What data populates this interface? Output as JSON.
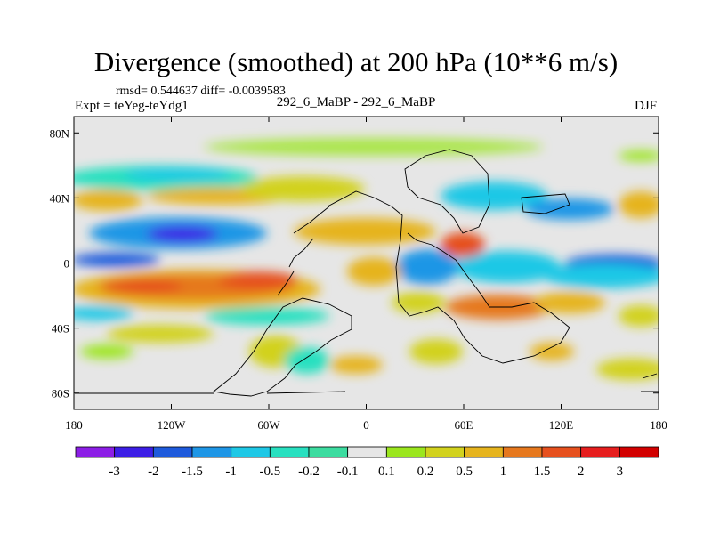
{
  "chart_data": {
    "type": "heatmap",
    "title": "Divergence (smoothed) at 200 hPa (10**6 m/s)",
    "stats_text": "rmsd= 0.544637  diff= -0.0039583",
    "experiment_text": "Expt = teYeg-teYdg1",
    "case_text": "292_6_MaBP - 292_6_MaBP",
    "season": "DJF",
    "x_ticks": [
      {
        "value": -180,
        "label": "180"
      },
      {
        "value": -120,
        "label": "120W"
      },
      {
        "value": -60,
        "label": "60W"
      },
      {
        "value": 0,
        "label": "0"
      },
      {
        "value": 60,
        "label": "60E"
      },
      {
        "value": 120,
        "label": "120E"
      },
      {
        "value": 180,
        "label": "180"
      }
    ],
    "y_ticks": [
      {
        "value": 80,
        "label": "80N"
      },
      {
        "value": 40,
        "label": "40N"
      },
      {
        "value": 0,
        "label": "0"
      },
      {
        "value": -40,
        "label": "40S"
      },
      {
        "value": -80,
        "label": "80S"
      }
    ],
    "xlim": [
      -180,
      180
    ],
    "ylim": [
      -90,
      90
    ],
    "colorbar": {
      "levels": [
        "-3",
        "-2",
        "-1.5",
        "-1",
        "-0.5",
        "-0.2",
        "-0.1",
        "0.1",
        "0.2",
        "0.5",
        "1",
        "1.5",
        "2",
        "3"
      ],
      "colors": [
        "#8c1ee6",
        "#3c1ee6",
        "#1e5adc",
        "#1e96e6",
        "#1ec8e6",
        "#28e0c0",
        "#3cdca0",
        "#e6e6e6",
        "#9be61e",
        "#d2d21e",
        "#e6b41e",
        "#e6781e",
        "#e6501e",
        "#e61e1e",
        "#d20000"
      ]
    },
    "features": [
      {
        "name": "tropical-pacific-negative",
        "lon": -165,
        "lat": 0,
        "level": 2
      },
      {
        "name": "north-pacific-negative",
        "lon": -125,
        "lat": 17,
        "level": 1
      },
      {
        "name": "south-pacific-positive",
        "lon": -110,
        "lat": -14,
        "level": 12
      },
      {
        "name": "south-pacific-max",
        "lon": -65,
        "lat": -10,
        "level": 13
      },
      {
        "name": "north-atlantic-positive",
        "lon": -150,
        "lat": 38,
        "level": 9
      },
      {
        "name": "africa-positive",
        "lon": 50,
        "lat": 10,
        "level": 13
      },
      {
        "name": "indian-ocean-negative",
        "lon": 60,
        "lat": -5,
        "level": 4
      },
      {
        "name": "west-pacific-negative",
        "lon": 110,
        "lat": 20,
        "level": 3
      },
      {
        "name": "east-pacific-negative",
        "lon": 160,
        "lat": 0,
        "level": 2
      },
      {
        "name": "maritime-continent-positive",
        "lon": 110,
        "lat": -10,
        "level": 11
      }
    ]
  }
}
